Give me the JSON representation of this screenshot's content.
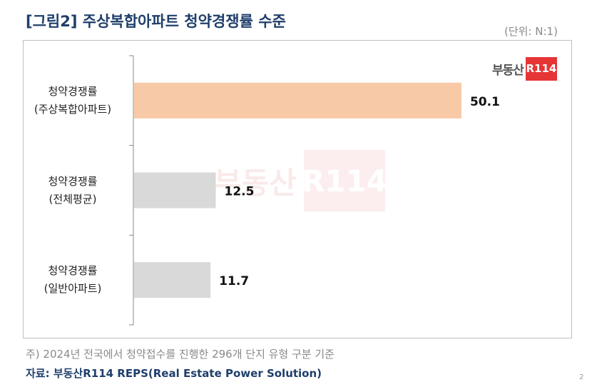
{
  "header": {
    "title": "[그림2] 주상복합아파트 청약경쟁률 수준",
    "unit": "(단위: N:1)"
  },
  "logo": {
    "text": "부동산",
    "box": "R114"
  },
  "footer": {
    "note": "주) 2024년 전국에서 청약접수를 진행한 296개 단지 유형 구분 기준",
    "source": "자료: 부동산R114 REPS(Real Estate Power Solution)",
    "page": "2"
  },
  "colors": {
    "title": "#1f3f6b",
    "highlight_bar": "#f8c9a6",
    "normal_bar": "#d9d9d9",
    "brand": "#e53535"
  },
  "chart_data": {
    "type": "bar",
    "orientation": "horizontal",
    "categories": [
      [
        "청약경쟁률",
        "(주상복합아파트)"
      ],
      [
        "청약경쟁률",
        "(전체평균)"
      ],
      [
        "청약경쟁률",
        "(일반아파트)"
      ]
    ],
    "values": [
      50.1,
      12.5,
      11.7
    ],
    "value_labels": [
      "50.1",
      "12.5",
      "11.7"
    ],
    "bar_colors": [
      "#f8c9a6",
      "#d9d9d9",
      "#d9d9d9"
    ],
    "xlim": [
      0,
      56
    ],
    "grid": false,
    "legend": "none"
  }
}
